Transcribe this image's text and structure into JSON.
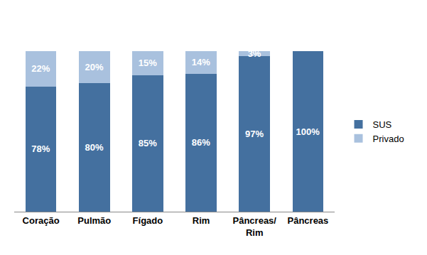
{
  "chart_data": {
    "type": "bar",
    "stacked": true,
    "data_labels": true,
    "tick_labels": "x",
    "legend": "right",
    "categories": [
      "Coração",
      "Pulmão",
      "Fígado",
      "Rim",
      "Pâncreas/ Rim",
      "Pâncreas"
    ],
    "ylim": [
      0,
      100
    ],
    "series": [
      {
        "name": "SUS",
        "color": "#44709f",
        "values": [
          78,
          80,
          85,
          86,
          97,
          100
        ],
        "value_labels": [
          "78%",
          "80%",
          "85%",
          "86%",
          "97%",
          "100%"
        ]
      },
      {
        "name": "Privado",
        "color": "#a9c1de",
        "values": [
          22,
          20,
          15,
          14,
          3,
          null
        ],
        "value_labels": [
          "22%",
          "20%",
          "15%",
          "14%",
          "3%",
          null
        ]
      }
    ]
  }
}
